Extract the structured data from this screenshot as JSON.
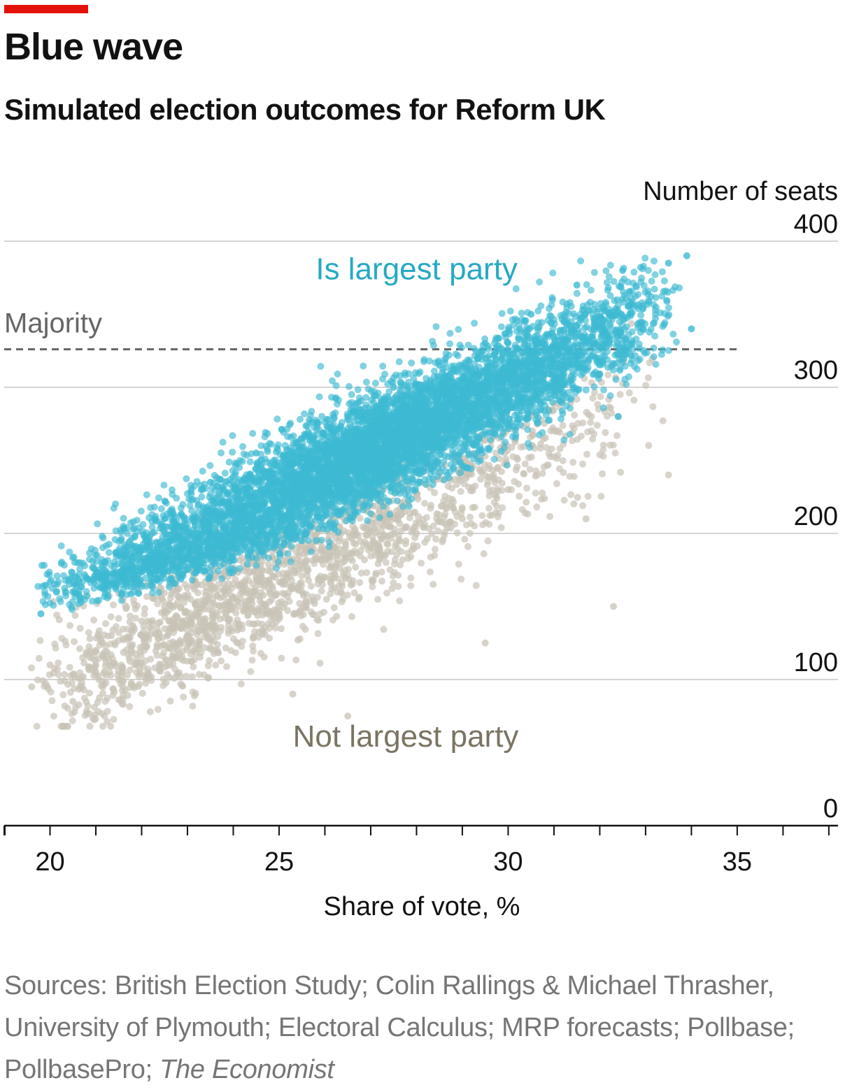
{
  "header": {
    "title": "Blue wave",
    "subtitle": "Simulated election outcomes for Reform UK"
  },
  "chart_data": {
    "type": "scatter",
    "title": "Blue wave",
    "subtitle": "Simulated election outcomes for Reform UK",
    "xlabel": "Share of vote, %",
    "ylabel": "Number of seats",
    "xlim": [
      19,
      37.2
    ],
    "ylim": [
      0,
      400
    ],
    "x_ticks": [
      20,
      25,
      30,
      35
    ],
    "x_minor_step": 1,
    "y_ticks": [
      0,
      100,
      200,
      300,
      400
    ],
    "y_axis_side": "right",
    "grid": "horizontal",
    "majority_line": {
      "label": "Majority",
      "y": 326,
      "style": "dashed",
      "x_end": 35
    },
    "series": [
      {
        "name": "Is largest party",
        "color": "#3dbad3",
        "description_regression": {
          "slope": 15.7,
          "intercept": -168,
          "noise_sd": 19,
          "x_range": [
            19.6,
            33.9
          ],
          "x_mode": 27.3,
          "count": 6500,
          "y_min_at_x": [
            [
              19.6,
              140
            ],
            [
              25,
              175
            ],
            [
              30,
              235
            ],
            [
              33.5,
              290
            ]
          ]
        },
        "sample_points": [
          [
            19.8,
            145
          ],
          [
            20.5,
            160
          ],
          [
            21.5,
            185
          ],
          [
            22.5,
            210
          ],
          [
            23.5,
            235
          ],
          [
            24.5,
            255
          ],
          [
            25.5,
            265
          ],
          [
            26.5,
            280
          ],
          [
            27.5,
            300
          ],
          [
            28.5,
            315
          ],
          [
            29.5,
            330
          ],
          [
            30.5,
            350
          ],
          [
            31.5,
            370
          ],
          [
            32.5,
            380
          ],
          [
            33.5,
            385
          ],
          [
            33.9,
            390
          ],
          [
            34.0,
            340
          ],
          [
            32.4,
            280
          ]
        ]
      },
      {
        "name": "Not largest party",
        "color": "#c9c3b6",
        "description_regression": {
          "slope": 15.2,
          "intercept": -212,
          "noise_sd": 22,
          "x_range": [
            19.5,
            33.5
          ],
          "count": 1900
        },
        "sample_points": [
          [
            19.6,
            95
          ],
          [
            20.0,
            110
          ],
          [
            20.5,
            85
          ],
          [
            21.0,
            120
          ],
          [
            21.5,
            100
          ],
          [
            22.0,
            140
          ],
          [
            22.5,
            150
          ],
          [
            23.0,
            130
          ],
          [
            23.5,
            165
          ],
          [
            24.0,
            150
          ],
          [
            24.5,
            170
          ],
          [
            25.0,
            190
          ],
          [
            25.3,
            90
          ],
          [
            26.0,
            170
          ],
          [
            26.5,
            75
          ],
          [
            27.0,
            190
          ],
          [
            28.0,
            200
          ],
          [
            29.0,
            210
          ],
          [
            29.5,
            125
          ],
          [
            30.0,
            230
          ],
          [
            31.7,
            210
          ],
          [
            32.3,
            150
          ],
          [
            33.5,
            240
          ]
        ]
      }
    ],
    "annotations": [
      {
        "text": "Is largest party",
        "color": "#27a9c4",
        "x": 25.8,
        "y": 374
      },
      {
        "text": "Not largest party",
        "color": "#7a7462",
        "x": 25.3,
        "y": 54
      }
    ]
  },
  "source": {
    "prefix": "Sources: British Election Study; Colin Rallings & Michael Thrasher, University of Plymouth; Electoral Calculus; MRP forecasts; Pollbase; PollbasePro; ",
    "publication": "The Economist"
  }
}
